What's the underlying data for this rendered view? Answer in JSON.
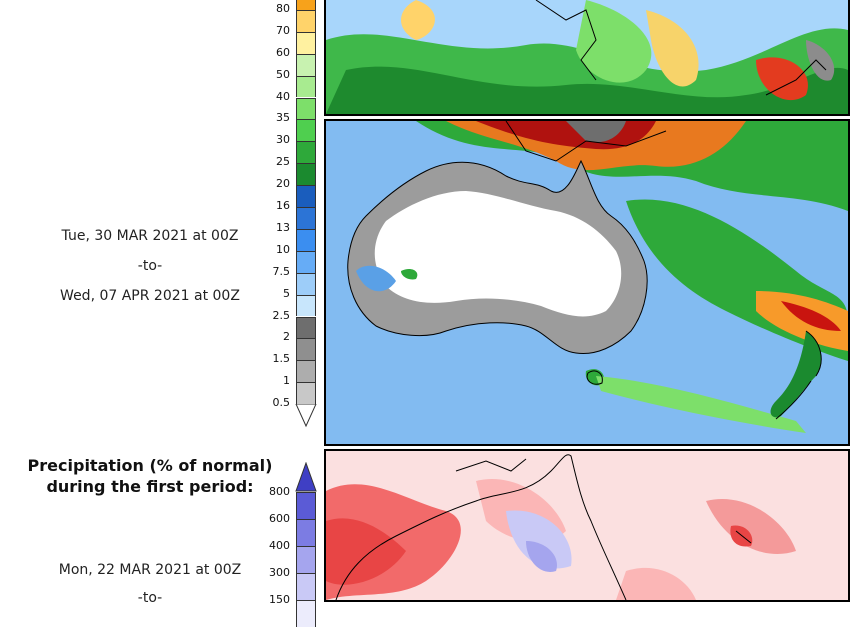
{
  "legend_top": {
    "ticks": [
      "80",
      "70",
      "60",
      "50",
      "40",
      "35",
      "30",
      "25",
      "20",
      "16",
      "13",
      "10",
      "7.5",
      "5",
      "2.5",
      "2",
      "1.5",
      "1",
      "0.5"
    ],
    "colors": [
      "#f7a21b",
      "#ffd36a",
      "#fff1a0",
      "#c8f2b0",
      "#a8eb90",
      "#7ddf6a",
      "#4fcf4f",
      "#2ea93a",
      "#1b8a2f",
      "#1a5dbd",
      "#2c74d6",
      "#3b8ef0",
      "#66acf6",
      "#9dcdf9",
      "#c8e6fc",
      "#6e6e6e",
      "#8f8f8f",
      "#adadad",
      "#c8c8c8"
    ]
  },
  "dates_top": {
    "start": "Tue, 30 MAR 2021 at 00Z",
    "to": "-to-",
    "end": "Wed, 07 APR 2021 at 00Z"
  },
  "bottom_section": {
    "title_line1": "Precipitation (% of normal)",
    "title_line2": "during the first period:",
    "ticks": [
      "800",
      "600",
      "400",
      "300",
      "150"
    ],
    "colors": [
      "#5b5bd6",
      "#7c7ce3",
      "#a5a5ee",
      "#c9c9f6",
      "#ececfc"
    ],
    "date_start": "Mon, 22 MAR 2021 at 00Z",
    "to": "-to-"
  }
}
